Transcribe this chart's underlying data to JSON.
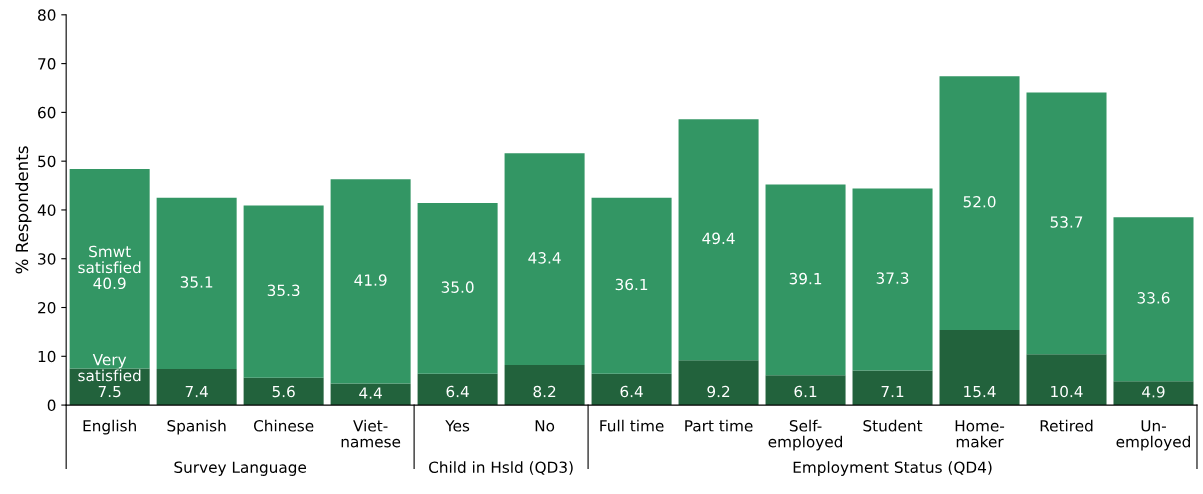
{
  "chart_data": {
    "type": "bar",
    "stacked": true,
    "ylabel": "% Respondents",
    "ylim": [
      0,
      80
    ],
    "yticks": [
      0,
      10,
      20,
      30,
      40,
      50,
      60,
      70,
      80
    ],
    "grid": false,
    "legend": false,
    "categories": [
      "English",
      "Spanish",
      "Chinese",
      "Viet-\nnamese",
      "Yes",
      "No",
      "Full time",
      "Part time",
      "Self-\nemployed",
      "Student",
      "Home-\nmaker",
      "Retired",
      "Un-\nemployed"
    ],
    "series": [
      {
        "name": "Very satisfied",
        "color": "#22623c",
        "values": [
          7.5,
          7.4,
          5.6,
          4.4,
          6.4,
          8.2,
          6.4,
          9.2,
          6.1,
          7.1,
          15.4,
          10.4,
          4.9
        ],
        "value_labels": [
          "7.5",
          "7.4",
          "5.6",
          "4.4",
          "6.4",
          "8.2",
          "6.4",
          "9.2",
          "6.1",
          "7.1",
          "15.4",
          "10.4",
          "4.9"
        ]
      },
      {
        "name": "Smwt satisfied",
        "color": "#339664",
        "values": [
          40.9,
          35.1,
          35.3,
          41.9,
          35.0,
          43.4,
          36.1,
          49.4,
          39.1,
          37.3,
          52.0,
          53.7,
          33.6
        ],
        "value_labels": [
          "40.9",
          "35.1",
          "35.3",
          "41.9",
          "35.0",
          "43.4",
          "36.1",
          "49.4",
          "39.1",
          "37.3",
          "52.0",
          "53.7",
          "33.6"
        ]
      }
    ],
    "annotations": [
      "Survey Language",
      "Child in Hsld (QD3)",
      "Employment Status (QD4)"
    ]
  }
}
